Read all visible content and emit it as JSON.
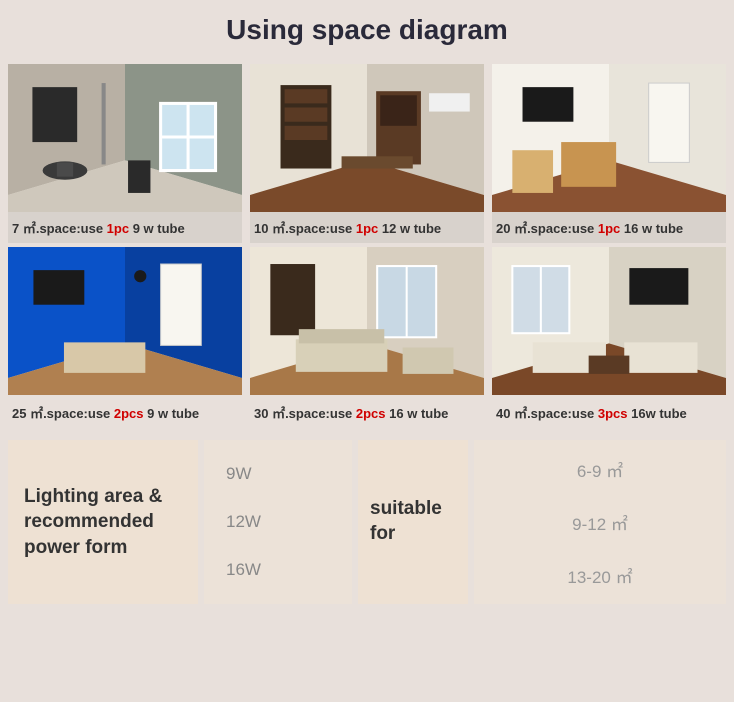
{
  "title": "Using space diagram",
  "colors": {
    "page_bg": "#e8e0db",
    "caption_bg_row1": "#d8d2cc",
    "caption_bg_row2": "#e8e0db",
    "qty_color": "#d00000",
    "text_dark": "#333333",
    "table_cell_bg": "#ece2d8",
    "table_header_bg": "#eee1d3",
    "table_value_color": "#888888"
  },
  "rooms": [
    {
      "area": "7 ㎡.space:use ",
      "qty": "1pc",
      "tube": " 9 w tube",
      "scene": "bathroom",
      "palette": {
        "wall1": "#b8b0a4",
        "wall2": "#8c9488",
        "floor": "#cfc8bc",
        "accent": "#2a2a2a",
        "door": "#6b5a3c"
      }
    },
    {
      "area": "10 ㎡.space:use ",
      "qty": "1pc",
      "tube": " 12 w tube",
      "scene": "study",
      "palette": {
        "wall1": "#e8e2d6",
        "wall2": "#cfc7ba",
        "floor": "#7a4a2a",
        "accent": "#3a2a1c",
        "door": "#5a3a24"
      }
    },
    {
      "area": "20 ㎡.space:use ",
      "qty": "1pc",
      "tube": " 16 w tube",
      "scene": "bedroom",
      "palette": {
        "wall1": "#f4f1ea",
        "wall2": "#e8e4da",
        "floor": "#8a5232",
        "accent": "#c89450",
        "door": "#f8f6f0"
      }
    },
    {
      "area": "25 ㎡.space:use ",
      "qty": "2pcs",
      "tube": " 9 w tube",
      "scene": "blueroom",
      "palette": {
        "wall1": "#0a52c8",
        "wall2": "#0840a0",
        "floor": "#b08050",
        "accent": "#1a1a1a",
        "door": "#f8f6f0"
      }
    },
    {
      "area": "30 ㎡.space:use ",
      "qty": "2pcs",
      "tube": " 16 w tube",
      "scene": "living1",
      "palette": {
        "wall1": "#ede6d8",
        "wall2": "#d8cfc0",
        "floor": "#a87848",
        "accent": "#d8d0b8",
        "door": "#3a2a1c"
      }
    },
    {
      "area": "40 ㎡.space:use ",
      "qty": "3pcs",
      "tube": " 16w tube",
      "scene": "living2",
      "palette": {
        "wall1": "#ede8dc",
        "wall2": "#d8d2c4",
        "floor": "#7a4828",
        "accent": "#e8e2d4",
        "door": "#1a1a1a"
      }
    }
  ],
  "table": {
    "header1": "Lighting area & recommended power form",
    "watts": [
      "9W",
      "12W",
      "16W"
    ],
    "header2": "suitable for",
    "areas": [
      "6-9 ㎡",
      "9-12 ㎡",
      "13-20 ㎡"
    ]
  }
}
